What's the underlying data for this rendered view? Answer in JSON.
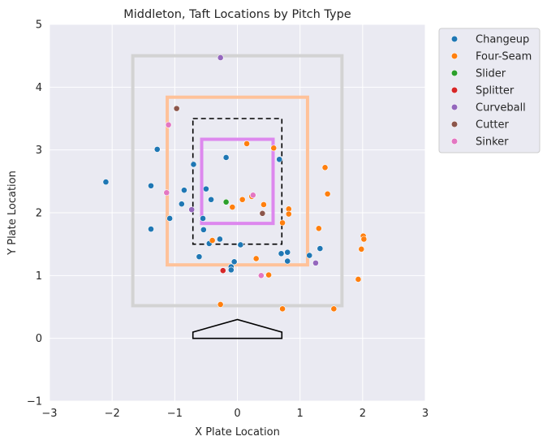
{
  "chart_data": {
    "type": "scatter",
    "title": "Middleton, Taft Locations by Pitch Type",
    "xlabel": "X Plate Location",
    "ylabel": "Y Plate Location",
    "xlim": [
      -3,
      3
    ],
    "ylim": [
      -1,
      5
    ],
    "xticks": [
      "−3",
      "−2",
      "−1",
      "0",
      "1",
      "2",
      "3"
    ],
    "yticks": [
      "−1",
      "0",
      "1",
      "2",
      "3",
      "4",
      "5"
    ],
    "grid": true,
    "legend_position": "outside-top-right",
    "zones": [
      {
        "name": "outer-zone",
        "x": [
          -1.67,
          1.67
        ],
        "y": [
          0.52,
          4.5
        ],
        "color": "#d3d3d3",
        "style": "solid"
      },
      {
        "name": "middle-zone",
        "x": [
          -1.12,
          1.12
        ],
        "y": [
          1.17,
          3.84
        ],
        "color": "#ffc299",
        "style": "solid"
      },
      {
        "name": "strike-zone",
        "x": [
          -0.71,
          0.71
        ],
        "y": [
          1.5,
          3.5
        ],
        "color": "#000000",
        "style": "dashed"
      },
      {
        "name": "inner-zone",
        "x": [
          -0.57,
          0.57
        ],
        "y": [
          1.83,
          3.17
        ],
        "color": "#dd88ee",
        "style": "solid"
      }
    ],
    "home_plate": [
      [
        -0.71,
        0.0
      ],
      [
        -0.71,
        0.1
      ],
      [
        0.0,
        0.3
      ],
      [
        0.71,
        0.1
      ],
      [
        0.71,
        0.0
      ]
    ],
    "series": [
      {
        "name": "Changeup",
        "color": "#1f77b4",
        "points": [
          [
            -2.1,
            2.49
          ],
          [
            -1.28,
            3.01
          ],
          [
            -1.38,
            2.43
          ],
          [
            -1.38,
            1.74
          ],
          [
            -1.08,
            1.91
          ],
          [
            -0.89,
            2.14
          ],
          [
            -0.85,
            2.36
          ],
          [
            -0.7,
            2.77
          ],
          [
            -0.18,
            2.88
          ],
          [
            -0.5,
            2.38
          ],
          [
            -0.42,
            2.21
          ],
          [
            -0.55,
            1.91
          ],
          [
            -0.54,
            1.73
          ],
          [
            -0.45,
            1.51
          ],
          [
            -0.28,
            1.58
          ],
          [
            0.05,
            1.49
          ],
          [
            -0.61,
            1.3
          ],
          [
            -0.05,
            1.22
          ],
          [
            -0.1,
            1.14
          ],
          [
            -0.1,
            1.09
          ],
          [
            0.67,
            2.85
          ],
          [
            0.7,
            1.35
          ],
          [
            0.8,
            1.37
          ],
          [
            0.8,
            1.23
          ],
          [
            1.15,
            1.32
          ],
          [
            1.32,
            1.43
          ]
        ]
      },
      {
        "name": "Four-Seam",
        "color": "#ff7f0e",
        "points": [
          [
            0.15,
            3.1
          ],
          [
            0.58,
            3.03
          ],
          [
            0.08,
            2.21
          ],
          [
            0.23,
            2.26
          ],
          [
            -0.08,
            2.09
          ],
          [
            0.42,
            2.13
          ],
          [
            0.82,
            2.06
          ],
          [
            0.82,
            1.98
          ],
          [
            0.72,
            1.84
          ],
          [
            1.4,
            2.72
          ],
          [
            1.44,
            2.3
          ],
          [
            1.3,
            1.75
          ],
          [
            2.01,
            1.63
          ],
          [
            2.02,
            1.58
          ],
          [
            1.98,
            1.42
          ],
          [
            1.93,
            0.94
          ],
          [
            -0.4,
            1.56
          ],
          [
            0.3,
            1.27
          ],
          [
            0.5,
            1.01
          ],
          [
            0.72,
            0.47
          ],
          [
            -0.27,
            0.54
          ],
          [
            1.54,
            0.47
          ]
        ]
      },
      {
        "name": "Slider",
        "color": "#2ca02c",
        "points": [
          [
            -0.18,
            2.17
          ]
        ]
      },
      {
        "name": "Splitter",
        "color": "#d62728",
        "points": [
          [
            -0.23,
            1.08
          ]
        ]
      },
      {
        "name": "Curveball",
        "color": "#9467bd",
        "points": [
          [
            -0.27,
            4.47
          ],
          [
            -0.73,
            2.05
          ],
          [
            1.25,
            1.2
          ]
        ]
      },
      {
        "name": "Cutter",
        "color": "#8c564b",
        "points": [
          [
            -0.97,
            3.66
          ],
          [
            0.4,
            1.99
          ]
        ]
      },
      {
        "name": "Sinker",
        "color": "#e377c2",
        "points": [
          [
            -1.1,
            3.4
          ],
          [
            -1.13,
            2.32
          ],
          [
            0.25,
            2.28
          ],
          [
            0.38,
            1.0
          ]
        ]
      }
    ]
  }
}
